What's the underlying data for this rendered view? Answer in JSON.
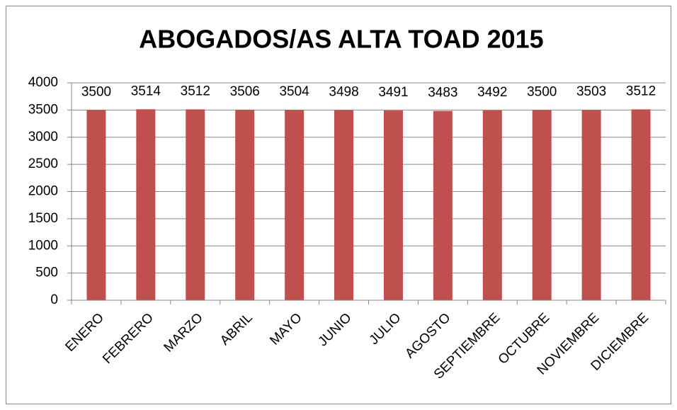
{
  "chart_data": {
    "type": "bar",
    "title": "ABOGADOS/AS ALTA TOAD 2015",
    "categories": [
      "ENERO",
      "FEBRERO",
      "MARZO",
      "ABRIL",
      "MAYO",
      "JUNIO",
      "JULIO",
      "AGOSTO",
      "SEPTIEMBRE",
      "OCTUBRE",
      "NOVIEMBRE",
      "DICIEMBRE"
    ],
    "values": [
      3500,
      3514,
      3512,
      3506,
      3504,
      3498,
      3491,
      3483,
      3492,
      3500,
      3503,
      3512
    ],
    "color": "#c0504d",
    "ylim": [
      0,
      4000
    ],
    "yticks": [
      0,
      500,
      1000,
      1500,
      2000,
      2500,
      3000,
      3500,
      4000
    ],
    "grid": true
  }
}
